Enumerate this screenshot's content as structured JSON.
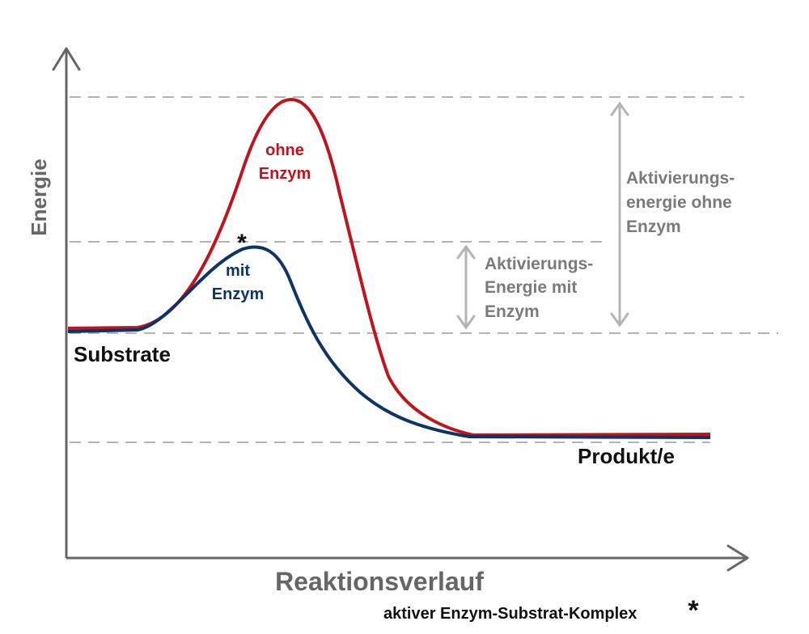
{
  "axes": {
    "y_label": "Energie",
    "x_label": "Reaktionsverlauf"
  },
  "curves": {
    "without_enzyme": {
      "label_lines": [
        "ohne",
        "Enzym"
      ],
      "color": "#c0141c"
    },
    "with_enzyme": {
      "label_lines": [
        "mit",
        "Enzym"
      ],
      "color": "#0d3466"
    }
  },
  "levels": {
    "substrate_label": "Substrate",
    "product_label": "Produkt/e"
  },
  "activation_energy": {
    "without_enzyme_lines": [
      "Aktivierungs-",
      "energie ohne",
      "Enzym"
    ],
    "with_enzyme_lines": [
      "Aktivierungs-",
      "Energie mit",
      "Enzym"
    ]
  },
  "complex_marker": "*",
  "footnote": {
    "text": "aktiver Enzym-Substrat-Komplex",
    "marker": "*"
  },
  "colors": {
    "axis": "#666666",
    "dashed_lines": "#b4b4b4",
    "arrows": "#b4b4b4",
    "annotation_text": "#7a7a7a"
  }
}
